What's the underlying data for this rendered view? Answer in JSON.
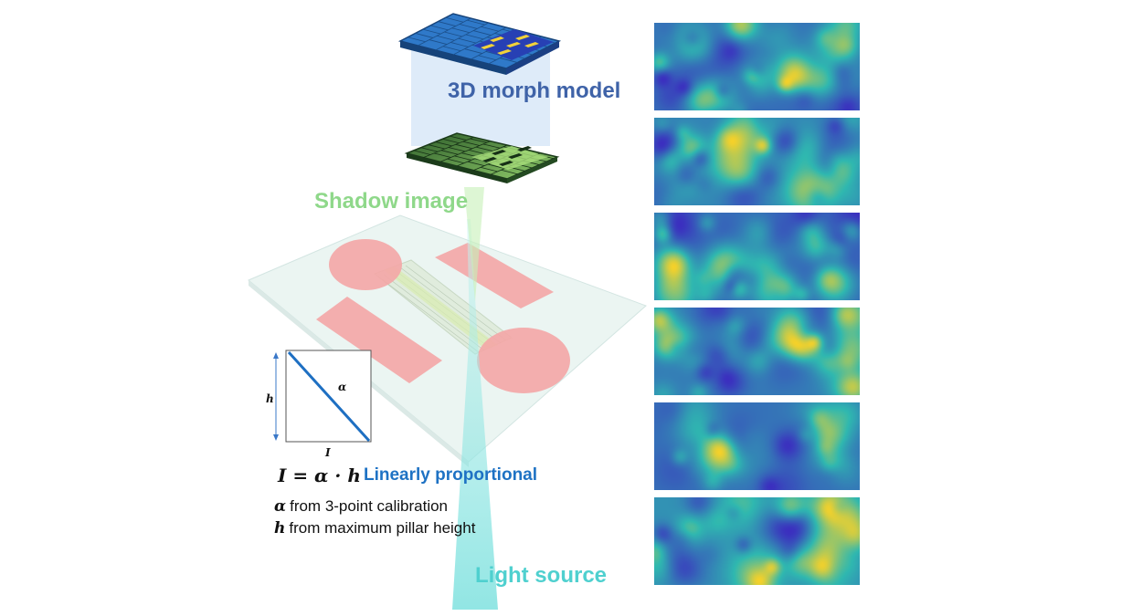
{
  "labels": {
    "morph_model": "3D morph model",
    "shadow_image": "Shadow image",
    "light_source": "Light source",
    "linearly_proportional": "Linearly proportional"
  },
  "equation": "I = α · h",
  "notes": [
    {
      "symbol": "α",
      "text": "from 3-point calibration"
    },
    {
      "symbol": "h",
      "text": "from maximum pillar height"
    }
  ],
  "inset_plot": {
    "y_axis": "h",
    "x_axis": "I",
    "slope_label": "α"
  },
  "colors": {
    "morph_label": "#3f63a8",
    "shadow_label": "#8fd88a",
    "light_label": "#4fd0cf",
    "linear_label": "#1e72c4",
    "pad": "#f4a6a6",
    "heatmap_low": "#3b2fbf",
    "heatmap_mid": "#2fb8b0",
    "heatmap_high": "#f5d12a"
  },
  "heatmaps": [
    {
      "seed": 3
    },
    {
      "seed": 7
    },
    {
      "seed": 11
    },
    {
      "seed": 17
    },
    {
      "seed": 23
    },
    {
      "seed": 31
    }
  ]
}
